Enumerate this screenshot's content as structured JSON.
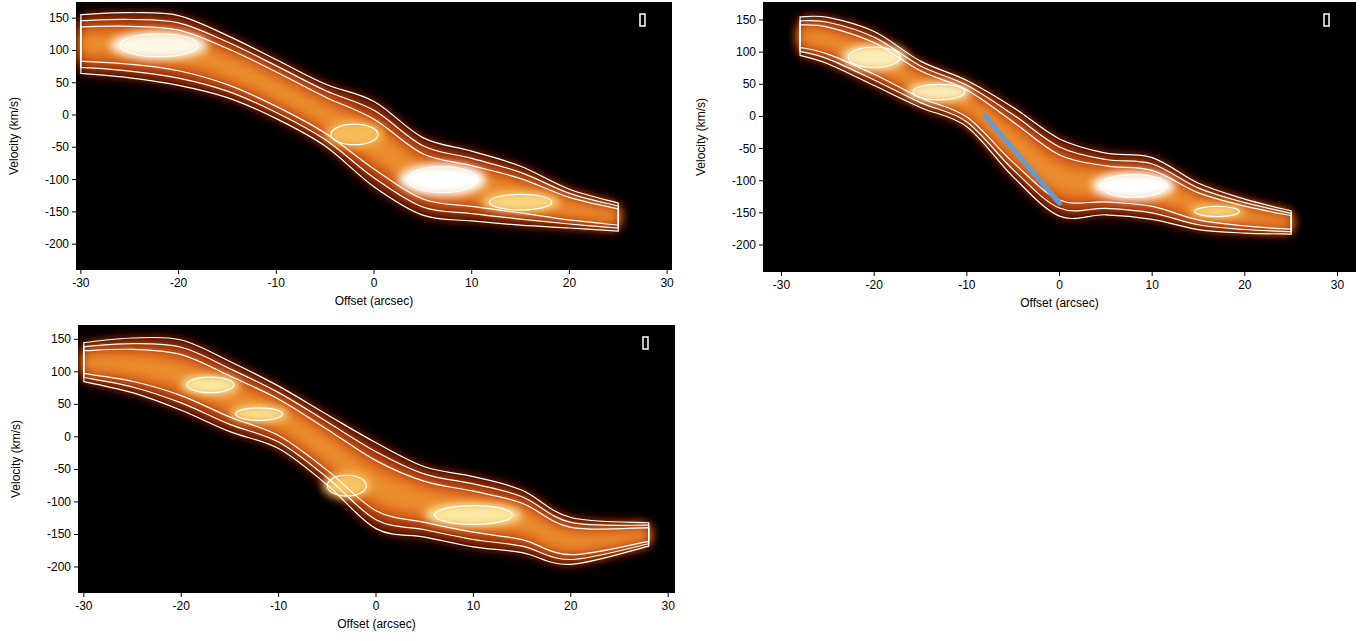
{
  "chart_data": [
    {
      "type": "pv-diagram",
      "x_label": "Offset (arcsec)",
      "y_label": "Velocity (km/s)",
      "xlim": [
        -30.5,
        30.5
      ],
      "ylim": [
        -240,
        175
      ],
      "xticks": [
        -30,
        -20,
        -10,
        0,
        10,
        20,
        30
      ],
      "yticks": [
        -200,
        -150,
        -100,
        -50,
        0,
        50,
        100,
        150
      ],
      "ridge": {
        "x": [
          -30,
          -25,
          -20,
          -15,
          -10,
          -5,
          0,
          5,
          10,
          15,
          20,
          25
        ],
        "values": [
          110,
          108,
          100,
          75,
          40,
          0,
          -45,
          -95,
          -110,
          -125,
          -145,
          -158
        ],
        "halfwidth": [
          38,
          42,
          45,
          40,
          38,
          40,
          55,
          50,
          45,
          38,
          25,
          18
        ]
      },
      "peaks": [
        {
          "x": -22,
          "y": 108,
          "dx": 5,
          "dy": 22,
          "intensity": 0.95
        },
        {
          "x": 7,
          "y": -100,
          "dx": 4.5,
          "dy": 25,
          "intensity": 1.0
        },
        {
          "x": -2,
          "y": -30,
          "dx": 3,
          "dy": 20,
          "intensity": 0.55
        },
        {
          "x": 15,
          "y": -135,
          "dx": 4,
          "dy": 15,
          "intensity": 0.7
        }
      ]
    },
    {
      "type": "pv-diagram",
      "x_label": "Offset (arcsec)",
      "y_label": "Velocity (km/s)",
      "xlim": [
        -32,
        32
      ],
      "ylim": [
        -242,
        178
      ],
      "xticks": [
        -30,
        -20,
        -10,
        0,
        10,
        20,
        30
      ],
      "yticks": [
        -200,
        -150,
        -100,
        -50,
        0,
        50,
        100,
        150
      ],
      "ridge": {
        "x": [
          -28,
          -25,
          -20,
          -15,
          -10,
          -5,
          0,
          5,
          10,
          15,
          20,
          25
        ],
        "values": [
          125,
          118,
          90,
          50,
          20,
          -40,
          -95,
          -105,
          -112,
          -140,
          -155,
          -165
        ],
        "halfwidth": [
          25,
          30,
          35,
          30,
          30,
          45,
          50,
          40,
          40,
          30,
          22,
          15
        ]
      },
      "peaks": [
        {
          "x": -20,
          "y": 92,
          "dx": 3.5,
          "dy": 20,
          "intensity": 0.85
        },
        {
          "x": -13,
          "y": 38,
          "dx": 3.5,
          "dy": 15,
          "intensity": 0.85
        },
        {
          "x": 8,
          "y": -108,
          "dx": 4.5,
          "dy": 22,
          "intensity": 1.0
        },
        {
          "x": 17,
          "y": -148,
          "dx": 3,
          "dy": 10,
          "intensity": 0.7
        }
      ],
      "annotation_line": {
        "x": [
          -8,
          0
        ],
        "y": [
          0,
          -135
        ],
        "color": "#6a9bc8"
      }
    },
    {
      "type": "pv-diagram",
      "x_label": "Offset (arcsec)",
      "y_label": "Velocity (km/s)",
      "xlim": [
        -30.6,
        30.7
      ],
      "ylim": [
        -240,
        172
      ],
      "xticks": [
        -30,
        -20,
        -10,
        0,
        10,
        20,
        30
      ],
      "yticks": [
        -200,
        -150,
        -100,
        -50,
        0,
        50,
        100,
        150
      ],
      "ridge": {
        "x": [
          -30,
          -25,
          -20,
          -15,
          -10,
          -5,
          0,
          5,
          10,
          15,
          20,
          28
        ],
        "values": [
          115,
          110,
          95,
          62,
          30,
          -20,
          -75,
          -100,
          -115,
          -130,
          -160,
          -150
        ],
        "halfwidth": [
          25,
          35,
          45,
          45,
          40,
          45,
          55,
          45,
          45,
          40,
          30,
          15
        ]
      },
      "peaks": [
        {
          "x": -17,
          "y": 80,
          "dx": 3,
          "dy": 15,
          "intensity": 0.8
        },
        {
          "x": -12,
          "y": 35,
          "dx": 3,
          "dy": 12,
          "intensity": 0.75
        },
        {
          "x": -3,
          "y": -75,
          "dx": 2.5,
          "dy": 20,
          "intensity": 0.6
        },
        {
          "x": 10,
          "y": -120,
          "dx": 5,
          "dy": 18,
          "intensity": 0.8
        }
      ]
    }
  ]
}
